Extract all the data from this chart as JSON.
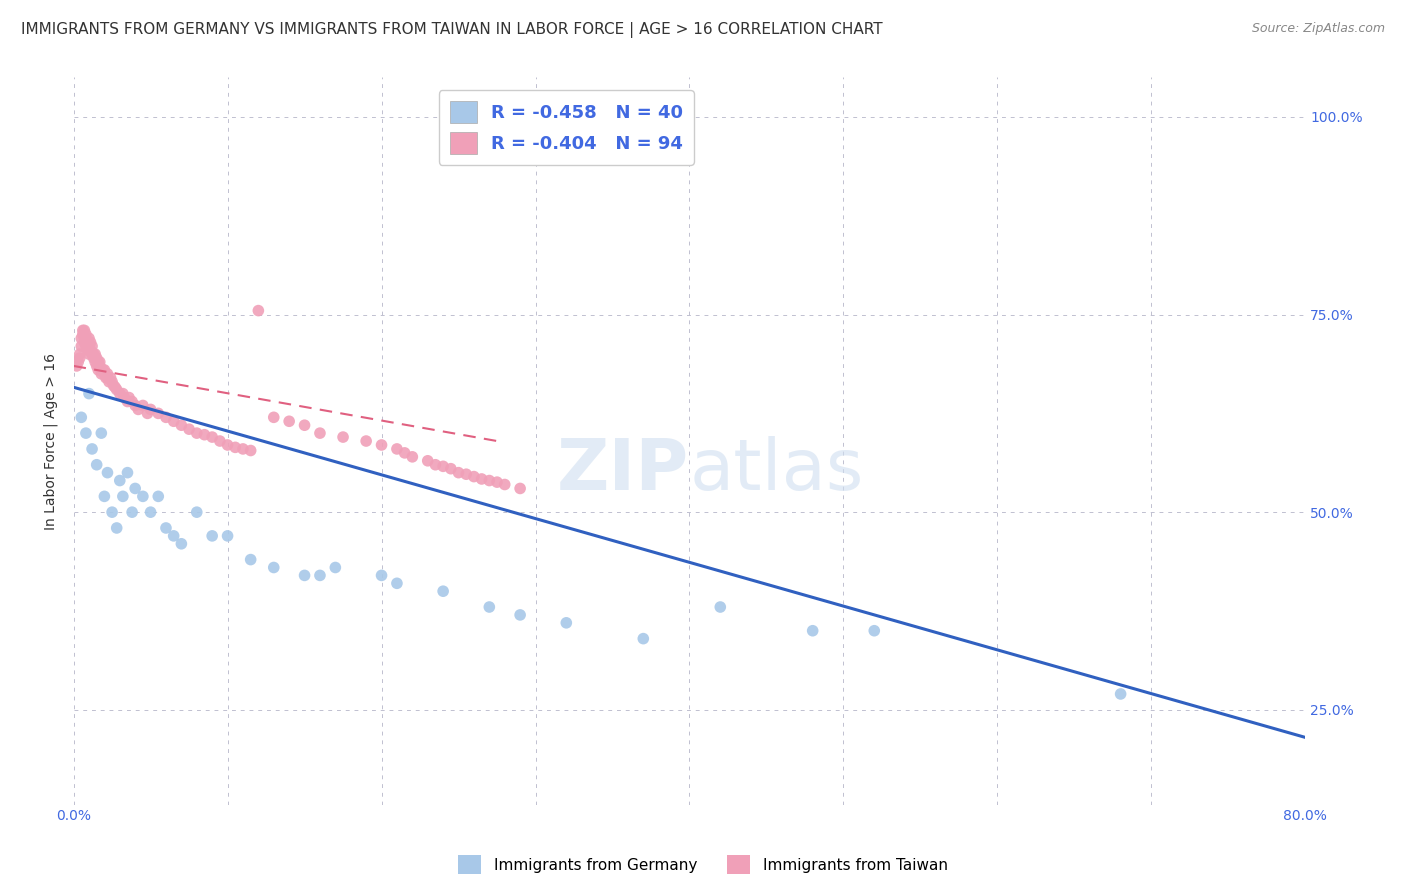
{
  "title": "IMMIGRANTS FROM GERMANY VS IMMIGRANTS FROM TAIWAN IN LABOR FORCE | AGE > 16 CORRELATION CHART",
  "source": "Source: ZipAtlas.com",
  "ylabel": "In Labor Force | Age > 16",
  "xlim": [
    0.0,
    0.8
  ],
  "ylim": [
    0.13,
    1.05
  ],
  "legend_germany_r": "R = -0.458",
  "legend_germany_n": "N = 40",
  "legend_taiwan_r": "R = -0.404",
  "legend_taiwan_n": "N = 94",
  "color_germany": "#a8c8e8",
  "color_taiwan": "#f0a0b8",
  "color_germany_line": "#3060c0",
  "color_taiwan_line": "#e06080",
  "watermark": "ZIPatlas",
  "germany_line_x": [
    0.0,
    0.8
  ],
  "germany_line_y": [
    0.658,
    0.215
  ],
  "taiwan_line_x": [
    0.0,
    0.275
  ],
  "taiwan_line_y": [
    0.685,
    0.59
  ],
  "grid_color": "#c0c0d0",
  "background_color": "#ffffff",
  "title_fontsize": 11,
  "axis_label_fontsize": 10,
  "tick_fontsize": 10,
  "germany_x": [
    0.005,
    0.008,
    0.01,
    0.012,
    0.015,
    0.018,
    0.02,
    0.022,
    0.025,
    0.028,
    0.03,
    0.032,
    0.035,
    0.038,
    0.04,
    0.045,
    0.05,
    0.055,
    0.06,
    0.065,
    0.07,
    0.08,
    0.09,
    0.1,
    0.115,
    0.13,
    0.15,
    0.16,
    0.17,
    0.2,
    0.21,
    0.24,
    0.27,
    0.29,
    0.32,
    0.37,
    0.42,
    0.48,
    0.52,
    0.68
  ],
  "germany_y": [
    0.62,
    0.6,
    0.65,
    0.58,
    0.56,
    0.6,
    0.52,
    0.55,
    0.5,
    0.48,
    0.54,
    0.52,
    0.55,
    0.5,
    0.53,
    0.52,
    0.5,
    0.52,
    0.48,
    0.47,
    0.46,
    0.5,
    0.47,
    0.47,
    0.44,
    0.43,
    0.42,
    0.42,
    0.43,
    0.42,
    0.41,
    0.4,
    0.38,
    0.37,
    0.36,
    0.34,
    0.38,
    0.35,
    0.35,
    0.27
  ],
  "taiwan_x": [
    0.002,
    0.003,
    0.004,
    0.004,
    0.005,
    0.005,
    0.006,
    0.006,
    0.007,
    0.007,
    0.007,
    0.008,
    0.008,
    0.008,
    0.009,
    0.009,
    0.01,
    0.01,
    0.01,
    0.011,
    0.011,
    0.012,
    0.012,
    0.013,
    0.013,
    0.014,
    0.014,
    0.015,
    0.015,
    0.016,
    0.016,
    0.017,
    0.017,
    0.018,
    0.018,
    0.019,
    0.02,
    0.02,
    0.021,
    0.022,
    0.022,
    0.023,
    0.024,
    0.025,
    0.026,
    0.027,
    0.028,
    0.03,
    0.032,
    0.033,
    0.035,
    0.036,
    0.038,
    0.04,
    0.042,
    0.045,
    0.048,
    0.05,
    0.055,
    0.06,
    0.065,
    0.07,
    0.075,
    0.08,
    0.085,
    0.09,
    0.095,
    0.1,
    0.105,
    0.11,
    0.115,
    0.12,
    0.13,
    0.14,
    0.15,
    0.16,
    0.175,
    0.19,
    0.2,
    0.21,
    0.215,
    0.22,
    0.23,
    0.235,
    0.24,
    0.245,
    0.25,
    0.255,
    0.26,
    0.265,
    0.27,
    0.275,
    0.28,
    0.29
  ],
  "taiwan_y": [
    0.685,
    0.69,
    0.695,
    0.7,
    0.71,
    0.72,
    0.725,
    0.73,
    0.72,
    0.715,
    0.73,
    0.725,
    0.72,
    0.71,
    0.705,
    0.715,
    0.7,
    0.71,
    0.72,
    0.705,
    0.715,
    0.7,
    0.71,
    0.7,
    0.695,
    0.69,
    0.7,
    0.695,
    0.685,
    0.69,
    0.68,
    0.685,
    0.69,
    0.68,
    0.675,
    0.68,
    0.68,
    0.675,
    0.67,
    0.67,
    0.675,
    0.665,
    0.67,
    0.665,
    0.66,
    0.658,
    0.655,
    0.65,
    0.65,
    0.645,
    0.64,
    0.645,
    0.64,
    0.635,
    0.63,
    0.635,
    0.625,
    0.63,
    0.625,
    0.62,
    0.615,
    0.61,
    0.605,
    0.6,
    0.598,
    0.595,
    0.59,
    0.585,
    0.582,
    0.58,
    0.578,
    0.755,
    0.62,
    0.615,
    0.61,
    0.6,
    0.595,
    0.59,
    0.585,
    0.58,
    0.575,
    0.57,
    0.565,
    0.56,
    0.558,
    0.555,
    0.55,
    0.548,
    0.545,
    0.542,
    0.54,
    0.538,
    0.535,
    0.53
  ]
}
